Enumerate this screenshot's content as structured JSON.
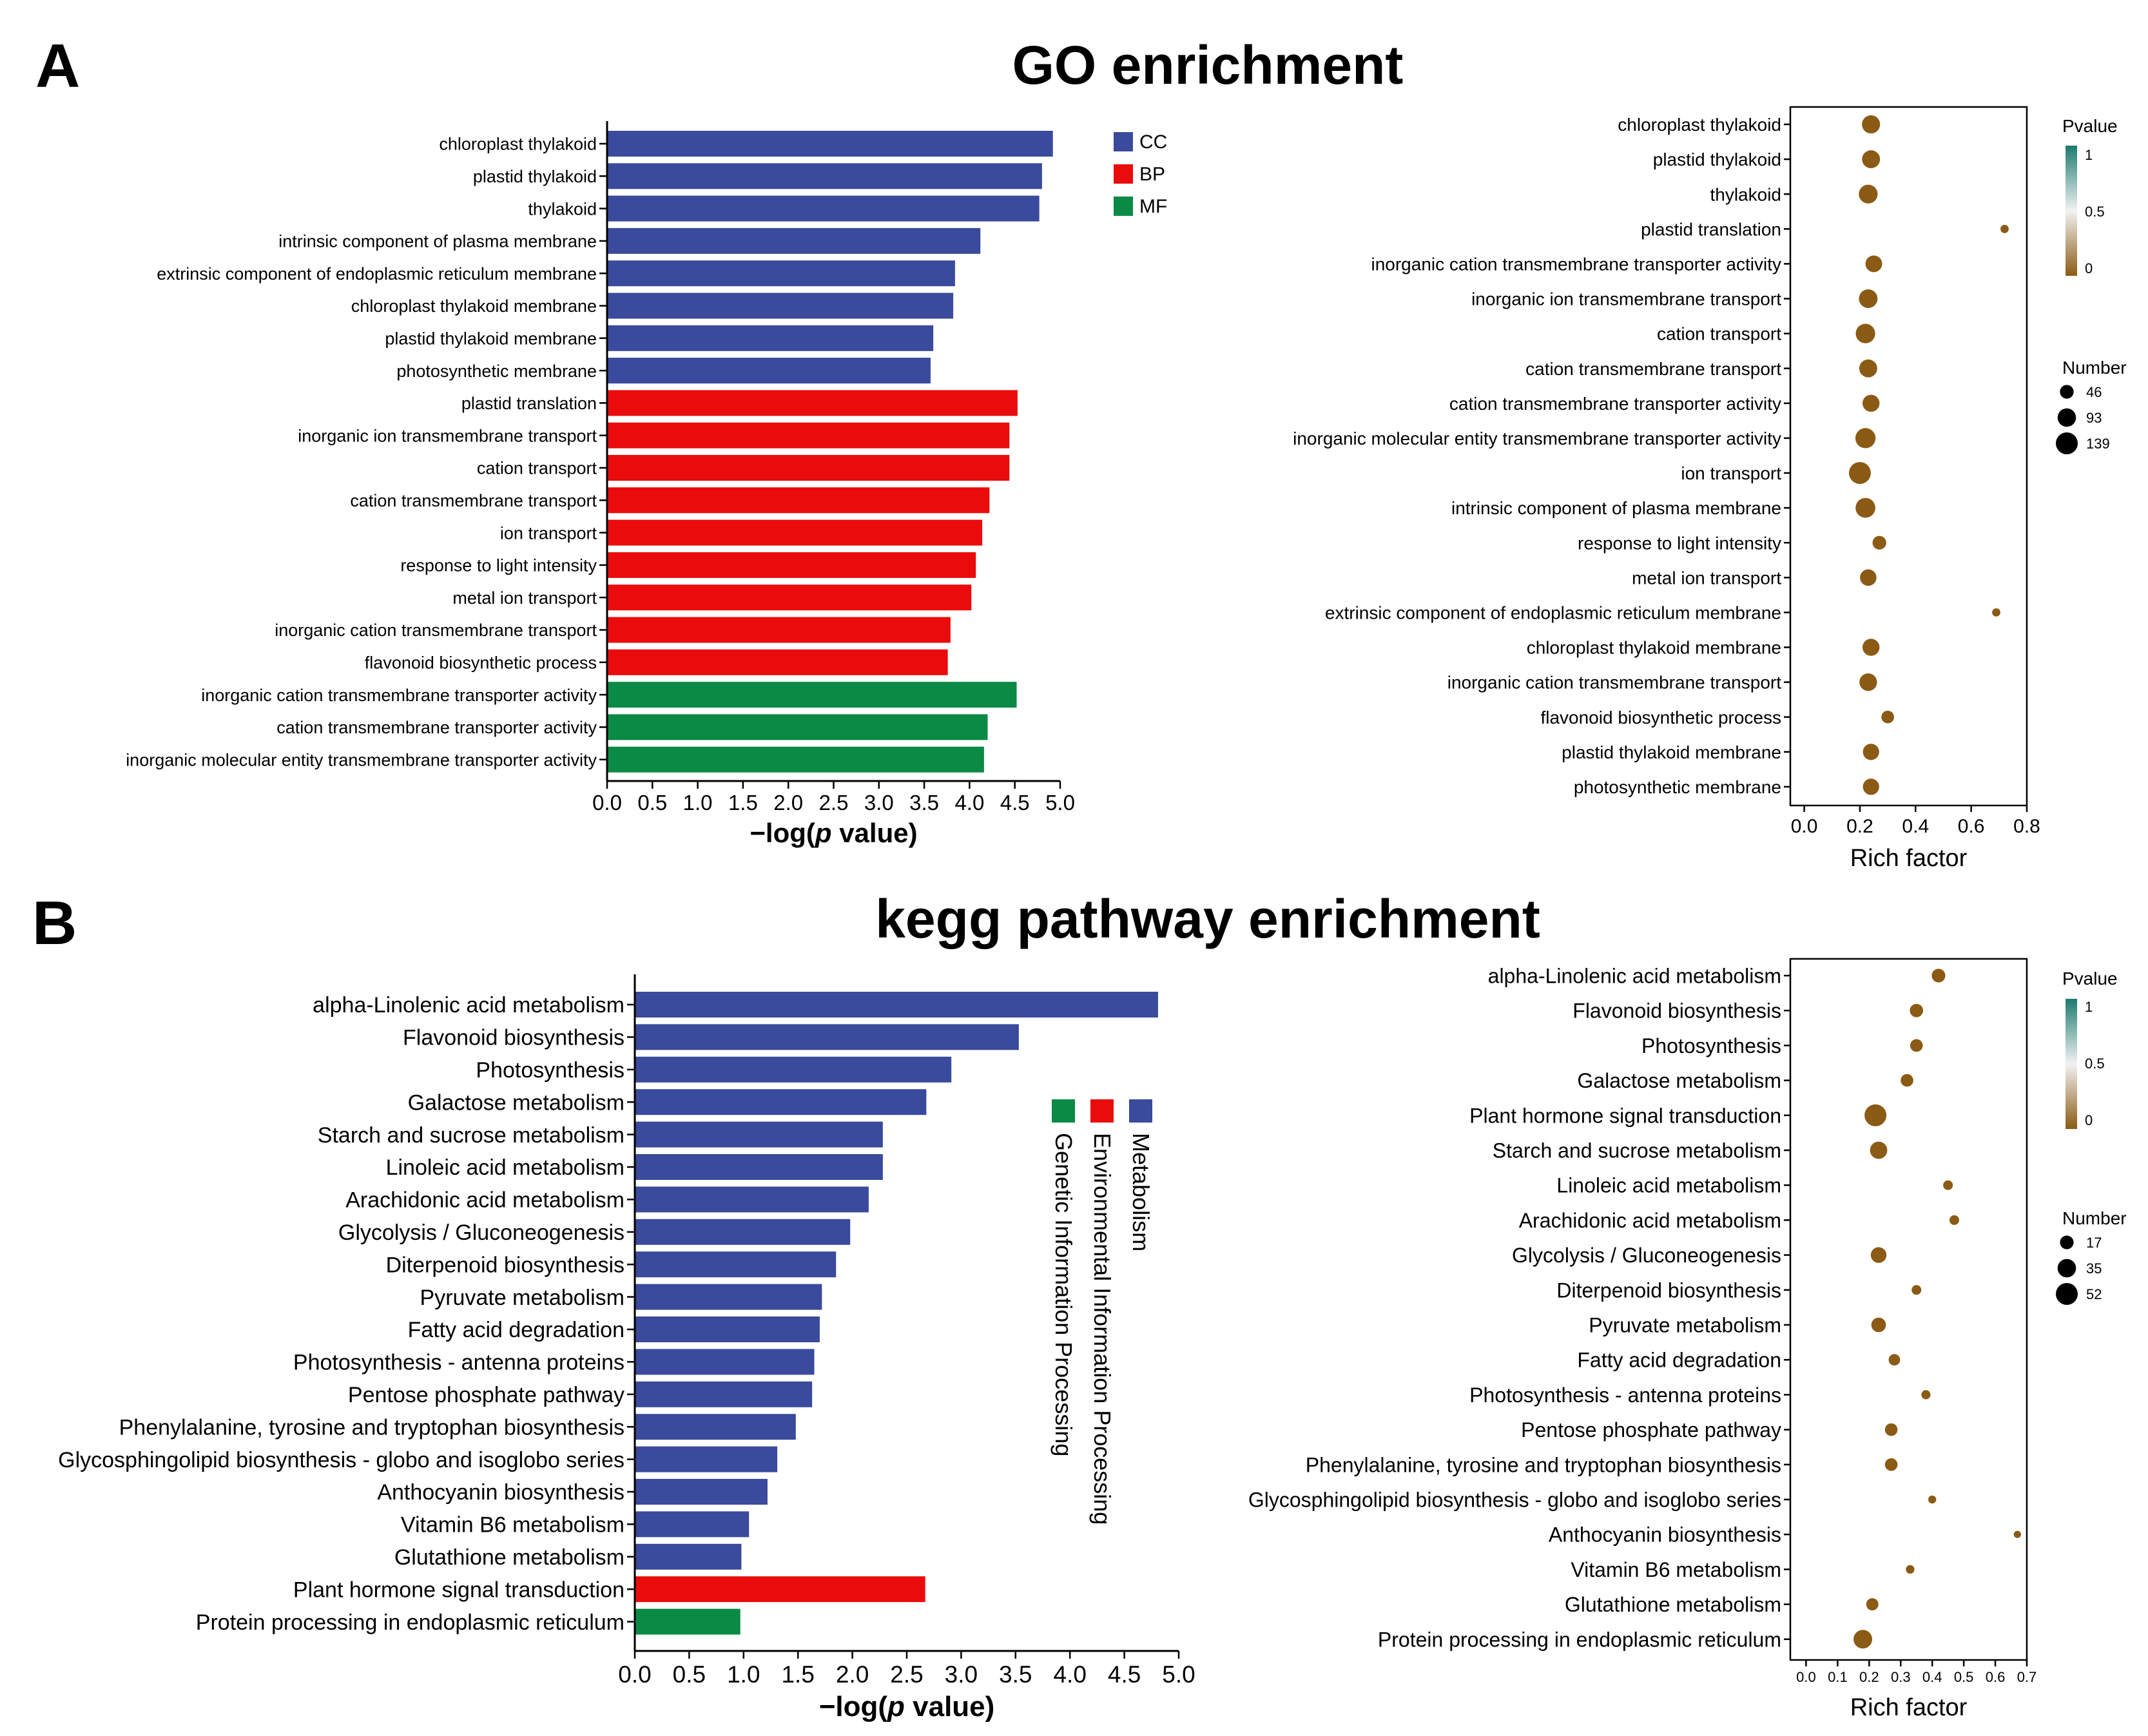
{
  "panel_a": {
    "letter": "A",
    "title": "GO enrichment"
  },
  "panel_b": {
    "letter": "B",
    "title": "kegg pathway enrichment"
  },
  "colors": {
    "cc": "#3a4a9c",
    "bp": "#ea0c0c",
    "mf": "#0a8a44",
    "metabolism": "#3a4a9c",
    "environmental": "#ea0c0c",
    "genetic": "#0a8a44",
    "dot_low_p": "#8b5a14",
    "dot_mid_p": "#f2f2f2",
    "dot_high_p": "#1b7a6e"
  },
  "chart_data": [
    {
      "id": "go_bar",
      "type": "bar",
      "orientation": "horizontal",
      "xlabel": "−log(p value)",
      "xlim": [
        0,
        5
      ],
      "xticks": [
        "0.0",
        "0.5",
        "1.0",
        "1.5",
        "2.0",
        "2.5",
        "3.0",
        "3.5",
        "4.0",
        "4.5",
        "5.0"
      ],
      "legend": {
        "placement": "top-right",
        "entries": [
          "CC",
          "BP",
          "MF"
        ]
      },
      "categories": [
        "chloroplast thylakoid",
        "plastid thylakoid",
        "thylakoid",
        "intrinsic component of plasma membrane",
        "extrinsic component of endoplasmic reticulum membrane",
        "chloroplast thylakoid membrane",
        "plastid thylakoid membrane",
        "photosynthetic membrane",
        "plastid translation",
        "inorganic ion transmembrane transport",
        "cation transport",
        "cation transmembrane transport",
        "ion transport",
        "response to light intensity",
        "metal ion transport",
        "inorganic cation transmembrane transport",
        "flavonoid biosynthetic process",
        "inorganic cation transmembrane transporter activity",
        "cation transmembrane transporter activity",
        "inorganic molecular entity transmembrane transporter activity"
      ],
      "values": [
        4.92,
        4.8,
        4.77,
        4.12,
        3.84,
        3.82,
        3.6,
        3.57,
        4.53,
        4.44,
        4.44,
        4.22,
        4.14,
        4.07,
        4.02,
        3.79,
        3.76,
        4.52,
        4.2,
        4.16
      ],
      "groups": [
        "CC",
        "CC",
        "CC",
        "CC",
        "CC",
        "CC",
        "CC",
        "CC",
        "BP",
        "BP",
        "BP",
        "BP",
        "BP",
        "BP",
        "BP",
        "BP",
        "BP",
        "MF",
        "MF",
        "MF"
      ]
    },
    {
      "id": "go_bubble",
      "type": "scatter",
      "xlabel": "Rich factor",
      "xlim": [
        -0.05,
        0.8
      ],
      "xticks": [
        "0.0",
        "0.2",
        "0.4",
        "0.6",
        "0.8"
      ],
      "categories": [
        "chloroplast thylakoid",
        "plastid thylakoid",
        "thylakoid",
        "plastid translation",
        "inorganic cation transmembrane transporter activity",
        "inorganic ion transmembrane transport",
        "cation transport",
        "cation transmembrane transport",
        "cation transmembrane transporter activity",
        "inorganic molecular entity transmembrane transporter activity",
        "ion transport",
        "intrinsic component of plasma membrane",
        "response to light intensity",
        "metal ion transport",
        "extrinsic component of endoplasmic reticulum membrane",
        "chloroplast thylakoid membrane",
        "inorganic cation transmembrane transport",
        "flavonoid biosynthetic process",
        "plastid thylakoid membrane",
        "photosynthetic membrane"
      ],
      "rich_factor": [
        0.24,
        0.24,
        0.23,
        0.72,
        0.25,
        0.23,
        0.22,
        0.23,
        0.24,
        0.22,
        0.2,
        0.22,
        0.27,
        0.23,
        0.69,
        0.24,
        0.23,
        0.3,
        0.24,
        0.24
      ],
      "number": [
        90,
        88,
        98,
        12,
        74,
        96,
        106,
        88,
        78,
        115,
        139,
        110,
        46,
        72,
        12,
        78,
        84,
        38,
        70,
        70
      ],
      "pvalue": [
        0,
        0,
        0,
        0,
        0,
        0,
        0,
        0,
        0,
        0,
        0,
        0,
        0,
        0,
        0,
        0,
        0,
        0,
        0,
        0
      ],
      "color_legend": {
        "title": "Pvalue",
        "ticks": [
          "1",
          "0.5",
          "0"
        ]
      },
      "size_legend": {
        "title": "Number",
        "values": [
          46,
          93,
          139
        ],
        "labels": [
          "46",
          "93",
          "139"
        ]
      }
    },
    {
      "id": "kegg_bar",
      "type": "bar",
      "orientation": "horizontal",
      "xlabel": "−log(p value)",
      "xlim": [
        0,
        5
      ],
      "xticks": [
        "0.0",
        "0.5",
        "1.0",
        "1.5",
        "2.0",
        "2.5",
        "3.0",
        "3.5",
        "4.0",
        "4.5",
        "5.0"
      ],
      "legend": {
        "placement": "right",
        "entries": [
          "Metabolism",
          "Environmental Information Processing",
          "Genetic Information Processing"
        ]
      },
      "categories": [
        "alpha-Linolenic acid metabolism",
        "Flavonoid biosynthesis",
        "Photosynthesis",
        "Galactose metabolism",
        "Starch and sucrose metabolism",
        "Linoleic acid metabolism",
        "Arachidonic acid metabolism",
        "Glycolysis / Gluconeogenesis",
        "Diterpenoid biosynthesis",
        "Pyruvate metabolism",
        "Fatty acid degradation",
        "Photosynthesis - antenna proteins",
        "Pentose phosphate pathway",
        "Phenylalanine, tyrosine and tryptophan biosynthesis",
        "Glycosphingolipid biosynthesis - globo and isoglobo series",
        "Anthocyanin biosynthesis",
        "Vitamin B6 metabolism",
        "Glutathione metabolism",
        "Plant hormone signal transduction",
        "Protein processing in endoplasmic reticulum"
      ],
      "values": [
        4.81,
        3.53,
        2.91,
        2.68,
        2.28,
        2.28,
        2.15,
        1.98,
        1.85,
        1.72,
        1.7,
        1.65,
        1.63,
        1.48,
        1.31,
        1.22,
        1.05,
        0.98,
        2.67,
        0.97
      ],
      "groups": [
        "Metabolism",
        "Metabolism",
        "Metabolism",
        "Metabolism",
        "Metabolism",
        "Metabolism",
        "Metabolism",
        "Metabolism",
        "Metabolism",
        "Metabolism",
        "Metabolism",
        "Metabolism",
        "Metabolism",
        "Metabolism",
        "Metabolism",
        "Metabolism",
        "Metabolism",
        "Metabolism",
        "Environmental Information Processing",
        "Genetic Information Processing"
      ]
    },
    {
      "id": "kegg_bubble",
      "type": "scatter",
      "xlabel": "Rich factor",
      "xlim": [
        -0.05,
        0.7
      ],
      "xticks": [
        "0.0",
        "0.1",
        "0.2",
        "0.3",
        "0.4",
        "0.5",
        "0.6",
        "0.7"
      ],
      "categories": [
        "alpha-Linolenic acid metabolism",
        "Flavonoid biosynthesis",
        "Photosynthesis",
        "Galactose metabolism",
        "Plant hormone signal transduction",
        "Starch and sucrose metabolism",
        "Linoleic acid metabolism",
        "Arachidonic acid metabolism",
        "Glycolysis / Gluconeogenesis",
        "Diterpenoid biosynthesis",
        "Pyruvate metabolism",
        "Fatty acid degradation",
        "Photosynthesis - antenna proteins",
        "Pentose phosphate pathway",
        "Phenylalanine, tyrosine and tryptophan biosynthesis",
        "Glycosphingolipid biosynthesis - globo and isoglobo series",
        "Anthocyanin biosynthesis",
        "Vitamin B6 metabolism",
        "Glutathione metabolism",
        "Protein processing in endoplasmic reticulum"
      ],
      "rich_factor": [
        0.42,
        0.35,
        0.35,
        0.32,
        0.22,
        0.23,
        0.45,
        0.47,
        0.23,
        0.35,
        0.23,
        0.28,
        0.38,
        0.27,
        0.27,
        0.4,
        0.67,
        0.33,
        0.21,
        0.18
      ],
      "number": [
        17,
        16,
        14,
        14,
        52,
        30,
        7,
        7,
        24,
        7,
        20,
        11,
        6,
        14,
        14,
        4,
        3,
        5,
        13,
        36
      ],
      "pvalue": [
        0,
        0,
        0,
        0,
        0,
        0,
        0,
        0,
        0,
        0,
        0,
        0,
        0,
        0,
        0,
        0,
        0,
        0,
        0,
        0
      ],
      "color_legend": {
        "title": "Pvalue",
        "ticks": [
          "1",
          "0.5",
          "0"
        ]
      },
      "size_legend": {
        "title": "Number",
        "values": [
          17,
          35,
          52
        ],
        "labels": [
          "17",
          "35",
          "52"
        ]
      }
    }
  ]
}
